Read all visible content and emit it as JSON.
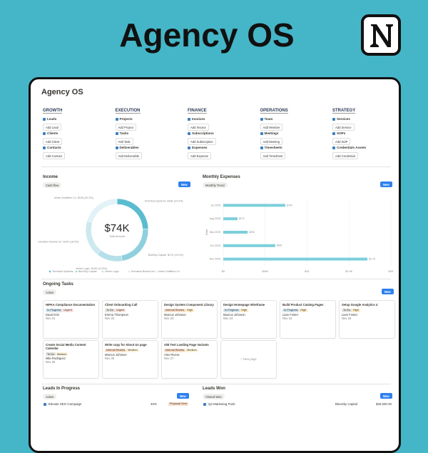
{
  "header": {
    "title": "Agency OS"
  },
  "workspace": {
    "title": "Agency OS",
    "nav": [
      {
        "heading": "GROWTH",
        "items": [
          {
            "link": "Leads",
            "button": "Add Lead"
          },
          {
            "link": "Clients",
            "button": "Add Client"
          },
          {
            "link": "Contacts",
            "button": "Add Contact"
          }
        ]
      },
      {
        "heading": "EXECUTION",
        "items": [
          {
            "link": "Projects",
            "button": "Add Project"
          },
          {
            "link": "Tasks",
            "button": "Add Task"
          },
          {
            "link": "Deliverables",
            "button": "Add Deliverable"
          }
        ]
      },
      {
        "heading": "FINANCE",
        "items": [
          {
            "link": "Invoices",
            "button": "Add Invoice"
          },
          {
            "link": "Subscriptions",
            "button": "Add Subscription"
          },
          {
            "link": "Expenses",
            "button": "Add Expense"
          }
        ]
      },
      {
        "heading": "OPERATIONS",
        "items": [
          {
            "link": "Team",
            "button": "Add Member"
          },
          {
            "link": "Meetings",
            "button": "Add Meeting"
          },
          {
            "link": "Timesheets",
            "button": "Add Timesheet"
          }
        ]
      },
      {
        "heading": "STRATEGY",
        "items": [
          {
            "link": "Services",
            "button": "Add Service"
          },
          {
            "link": "SOPs",
            "button": "Add SOP"
          },
          {
            "link": "Credentials Assets",
            "button": "Add Credential"
          }
        ]
      }
    ]
  },
  "income": {
    "title": "Income",
    "view": "Cash flow",
    "button": "New"
  },
  "expenses": {
    "title": "Monthly Expenses",
    "view": "Monthly Trend",
    "button": "New"
  },
  "chart_data": [
    {
      "type": "pie",
      "donut": true,
      "center_value": "$74K",
      "center_label": "Total Amount",
      "categories": [
        "Technical Systems",
        "BlueSky Capital",
        "Vertex Logic",
        "Elevation Brands Inc",
        "Urban Outfitters Co"
      ],
      "values": [
        18000,
        17000,
        10000,
        14000,
        15000
      ],
      "value_labels": [
        "$18K (24.3%)",
        "$17K (23.0%)",
        "$10K (13.5%)",
        "$14K (18.9%)",
        "$15K (20.3%)"
      ],
      "colors": [
        "#5bbcd0",
        "#8fd0de",
        "#b5e0ea",
        "#cde9f0",
        "#e2f2f6"
      ]
    },
    {
      "type": "bar",
      "orientation": "horizontal",
      "ylabel": "Date",
      "categories": [
        "Jul 2025",
        "Aug 2025",
        "Sep 2025",
        "Oct 2025",
        "Nov 2025"
      ],
      "values": [
        740,
        170,
        290,
        620,
        1720
      ],
      "value_labels": [
        "$740",
        "$170",
        "$290",
        "$620",
        "$1.7K"
      ],
      "color": "#7ccfdc",
      "xlim": [
        0,
        2000
      ],
      "xticks": [
        {
          "value": 0,
          "label": "$0"
        },
        {
          "value": 500,
          "label": "$500"
        },
        {
          "value": 1000,
          "label": "$1K"
        },
        {
          "value": 1500,
          "label": "$1.5K"
        },
        {
          "value": 2000,
          "label": "$2K"
        }
      ],
      "grid": true
    }
  ],
  "tasks": {
    "title": "Ongoing Tasks",
    "view": "Active",
    "button": "New",
    "new_page": "+ New page",
    "cards": [
      {
        "title": "HIPAA Compliance Documentation",
        "status": "In Progress",
        "priority": "Urgent",
        "assignee": "David Kim",
        "date": "Nov 21"
      },
      {
        "title": "Client Onboarding Call",
        "status": "To Do",
        "priority": "Urgent",
        "assignee": "Emma Thompson",
        "date": "Nov 22"
      },
      {
        "title": "Design System Component Library",
        "status": "Internal Review",
        "priority": "High",
        "assignee": "Marcus Johnson",
        "date": "Nov 23"
      },
      {
        "title": "Design Homepage Wireframe",
        "status": "In Progress",
        "priority": "High",
        "assignee": "Marcus Johnson",
        "date": "Nov 24"
      },
      {
        "title": "Build Product Catalog Pages",
        "status": "In Progress",
        "priority": "High",
        "assignee": "Liam Foster",
        "date": "Nov 24"
      },
      {
        "title": "Setup Google Analytics 4",
        "status": "To Do",
        "priority": "High",
        "assignee": "Liam Foster",
        "date": "Nov 25"
      },
      {
        "title": "Create Social Media Content Calendar",
        "status": "To Do",
        "priority": "Medium",
        "assignee": "Mila Rodriguez",
        "date": "Nov 25"
      },
      {
        "title": "Write copy for About Us page",
        "status": "Internal Review",
        "priority": "Medium",
        "assignee": "Marcus Johnson",
        "date": "Nov 26"
      },
      {
        "title": "A/B Test Landing Page Variants",
        "status": "Internal Review",
        "priority": "Medium",
        "assignee": "Alex Rivera",
        "date": "Nov 27"
      }
    ]
  },
  "leads_in_progress": {
    "title": "Leads In Progress",
    "view": "Active",
    "button": "New",
    "rows": [
      {
        "name": "Elevate SEO Campaign",
        "progress": "40%",
        "stage": "Proposal Sent"
      }
    ]
  },
  "leads_won": {
    "title": "Leads Won",
    "view": "Closed Won",
    "button": "New",
    "rows": [
      {
        "name": "Q4 Marketing Push",
        "client": "BlueSky Capital",
        "amount": "$25,000.00"
      }
    ]
  }
}
